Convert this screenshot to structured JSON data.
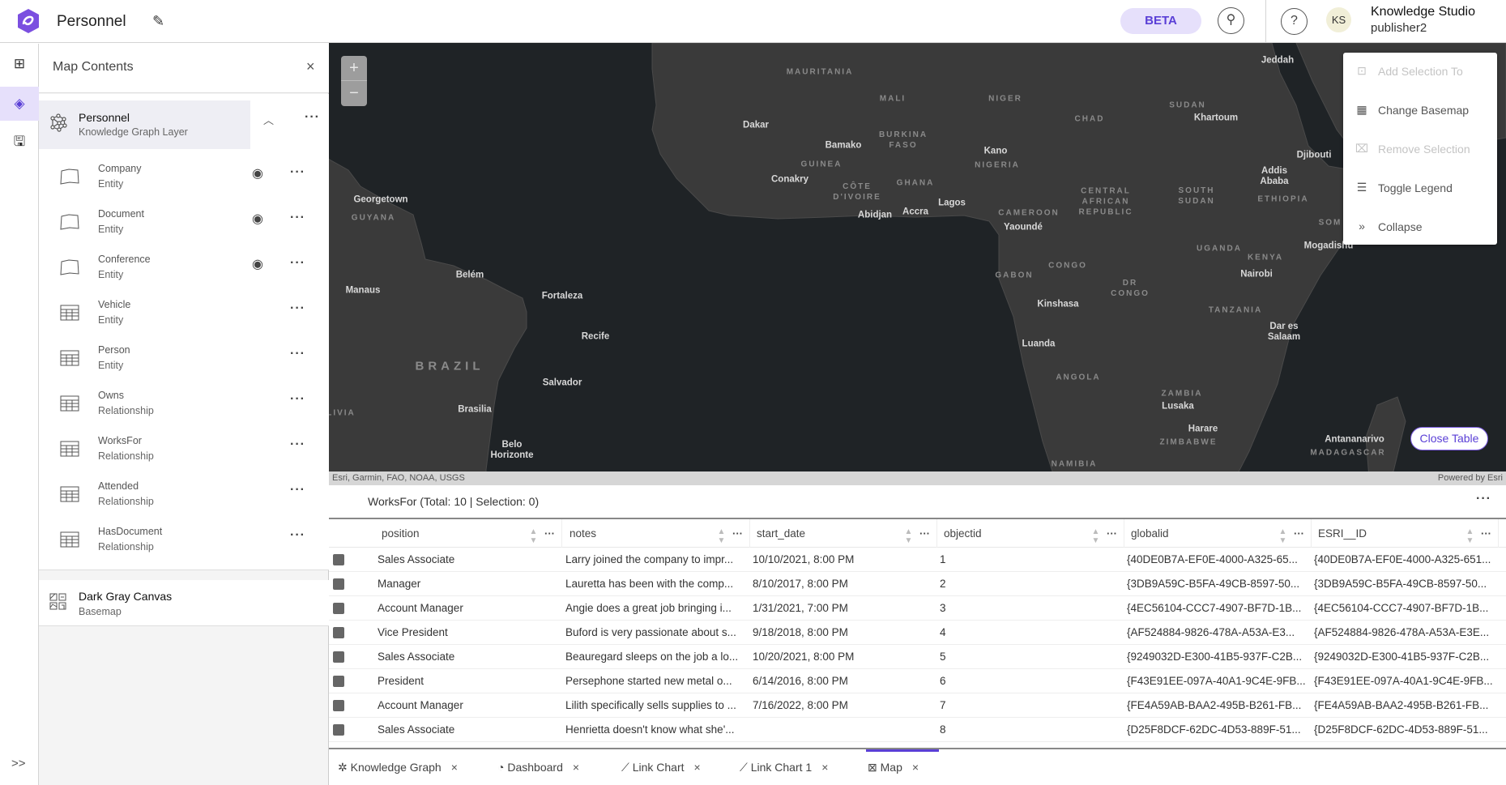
{
  "header": {
    "title": "Personnel",
    "beta_label": "BETA",
    "user_initials": "KS",
    "user_name": "Knowledge Studio",
    "user_role": "publisher2"
  },
  "rail": {
    "expand_label": ">>"
  },
  "sidebar": {
    "title": "Map Contents",
    "group": {
      "name": "Personnel",
      "type": "Knowledge Graph Layer"
    },
    "items": [
      {
        "name": "Company",
        "type": "Entity",
        "icon": "polygon-icon",
        "visible": true
      },
      {
        "name": "Document",
        "type": "Entity",
        "icon": "polygon-icon",
        "visible": true
      },
      {
        "name": "Conference",
        "type": "Entity",
        "icon": "polygon-icon",
        "visible": true
      },
      {
        "name": "Vehicle",
        "type": "Entity",
        "icon": "table-icon",
        "visible": false
      },
      {
        "name": "Person",
        "type": "Entity",
        "icon": "table-icon",
        "visible": false
      },
      {
        "name": "Owns",
        "type": "Relationship",
        "icon": "table-icon",
        "visible": false
      },
      {
        "name": "WorksFor",
        "type": "Relationship",
        "icon": "table-icon",
        "visible": false
      },
      {
        "name": "Attended",
        "type": "Relationship",
        "icon": "table-icon",
        "visible": false
      },
      {
        "name": "HasDocument",
        "type": "Relationship",
        "icon": "table-icon",
        "visible": false
      }
    ],
    "basemap": {
      "name": "Dark Gray Canvas",
      "type": "Basemap"
    }
  },
  "map": {
    "zoom_in": "+",
    "zoom_out": "−",
    "attribution": "Esri, Garmin, FAO, NOAA, USGS",
    "powered_by": "Powered by Esri",
    "close_table": "Close Table",
    "labels": [
      "MAURITANIA",
      "MALI",
      "NIGER",
      "SUDAN",
      "Jeddah",
      "Khartoum",
      "CHAD",
      "Dakar",
      "Bamako",
      "BURKINA FASO",
      "Djibouti",
      "Kano",
      "NIGERIA",
      "GUINEA",
      "Conakry",
      "CÔTE D'IVOIRE",
      "GHANA",
      "Addis Ababa",
      "ETHIOPIA",
      "CENTRAL AFRICAN REPUBLIC",
      "SOUTH SUDAN",
      "Abidjan",
      "Accra",
      "Lagos",
      "CAMEROON",
      "Yaoundé",
      "Georgetown",
      "GUYANA",
      "Mogadishu",
      "UGANDA",
      "KENYA",
      "Nairobi",
      "GABON",
      "CONGO",
      "DR CONGO",
      "Manaus",
      "Belém",
      "Fortaleza",
      "Kinshasa",
      "TANZANIA",
      "Dar es Salaam",
      "Recife",
      "Luanda",
      "BRAZIL",
      "ANGOLA",
      "Salvador",
      "ZAMBIA",
      "Lusaka",
      "Brasilia",
      "Harare",
      "ZIMBABWE",
      "Antananarivo",
      "MADAGASCAR",
      "Belo Horizonte",
      "NAMIBIA",
      "LIVIA",
      "SOM"
    ],
    "context_menu": [
      {
        "label": "Add Selection To",
        "icon": "add-selection-icon",
        "enabled": false
      },
      {
        "label": "Change Basemap",
        "icon": "basemap-icon",
        "enabled": true
      },
      {
        "label": "Remove Selection",
        "icon": "remove-selection-icon",
        "enabled": false
      },
      {
        "label": "Toggle Legend",
        "icon": "legend-icon",
        "enabled": true
      },
      {
        "label": "Collapse",
        "icon": "collapse-icon",
        "enabled": true
      }
    ]
  },
  "table": {
    "title": "WorksFor (Total: 10 | Selection: 0)",
    "columns": [
      "position",
      "notes",
      "start_date",
      "objectid",
      "globalid",
      "ESRI__ID"
    ],
    "rows": [
      [
        "Sales Associate",
        "Larry joined the company to impr...",
        "10/10/2021, 8:00 PM",
        "1",
        "{40DE0B7A-EF0E-4000-A325-65...",
        "{40DE0B7A-EF0E-4000-A325-651..."
      ],
      [
        "Manager",
        "Lauretta has been with the comp...",
        "8/10/2017, 8:00 PM",
        "2",
        "{3DB9A59C-B5FA-49CB-8597-50...",
        "{3DB9A59C-B5FA-49CB-8597-50..."
      ],
      [
        "Account Manager",
        "Angie does a great job bringing i...",
        "1/31/2021, 7:00 PM",
        "3",
        "{4EC56104-CCC7-4907-BF7D-1B...",
        "{4EC56104-CCC7-4907-BF7D-1B..."
      ],
      [
        "Vice President",
        "Buford is very passionate about s...",
        "9/18/2018, 8:00 PM",
        "4",
        "{AF524884-9826-478A-A53A-E3...",
        "{AF524884-9826-478A-A53A-E3E..."
      ],
      [
        "Sales Associate",
        "Beauregard sleeps on the job a lo...",
        "10/20/2021, 8:00 PM",
        "5",
        "{9249032D-E300-41B5-937F-C2B...",
        "{9249032D-E300-41B5-937F-C2B..."
      ],
      [
        "President",
        "Persephone started new metal o...",
        "6/14/2016, 8:00 PM",
        "6",
        "{F43E91EE-097A-40A1-9C4E-9FB...",
        "{F43E91EE-097A-40A1-9C4E-9FB..."
      ],
      [
        "Account Manager",
        "Lilith specifically sells supplies to ...",
        "7/16/2022, 8:00 PM",
        "7",
        "{FE4A59AB-BAA2-495B-B261-FB...",
        "{FE4A59AB-BAA2-495B-B261-FB..."
      ],
      [
        "Sales Associate",
        "Henrietta doesn't know what she'...",
        "",
        "8",
        "{D25F8DCF-62DC-4D53-889F-51...",
        "{D25F8DCF-62DC-4D53-889F-51..."
      ]
    ]
  },
  "tabs": [
    {
      "label": "Knowledge Graph",
      "icon": "knowledge-graph-icon",
      "active": false
    },
    {
      "label": "Dashboard",
      "icon": "dashboard-icon",
      "active": false
    },
    {
      "label": "Link Chart",
      "icon": "link-chart-icon",
      "active": false
    },
    {
      "label": "Link Chart 1",
      "icon": "link-chart-icon",
      "active": false
    },
    {
      "label": "Map",
      "icon": "map-icon",
      "active": true
    }
  ],
  "colors": {
    "accent": "#5a3fd6",
    "ocean": "#1f2326",
    "land": "#3a3a3a"
  }
}
